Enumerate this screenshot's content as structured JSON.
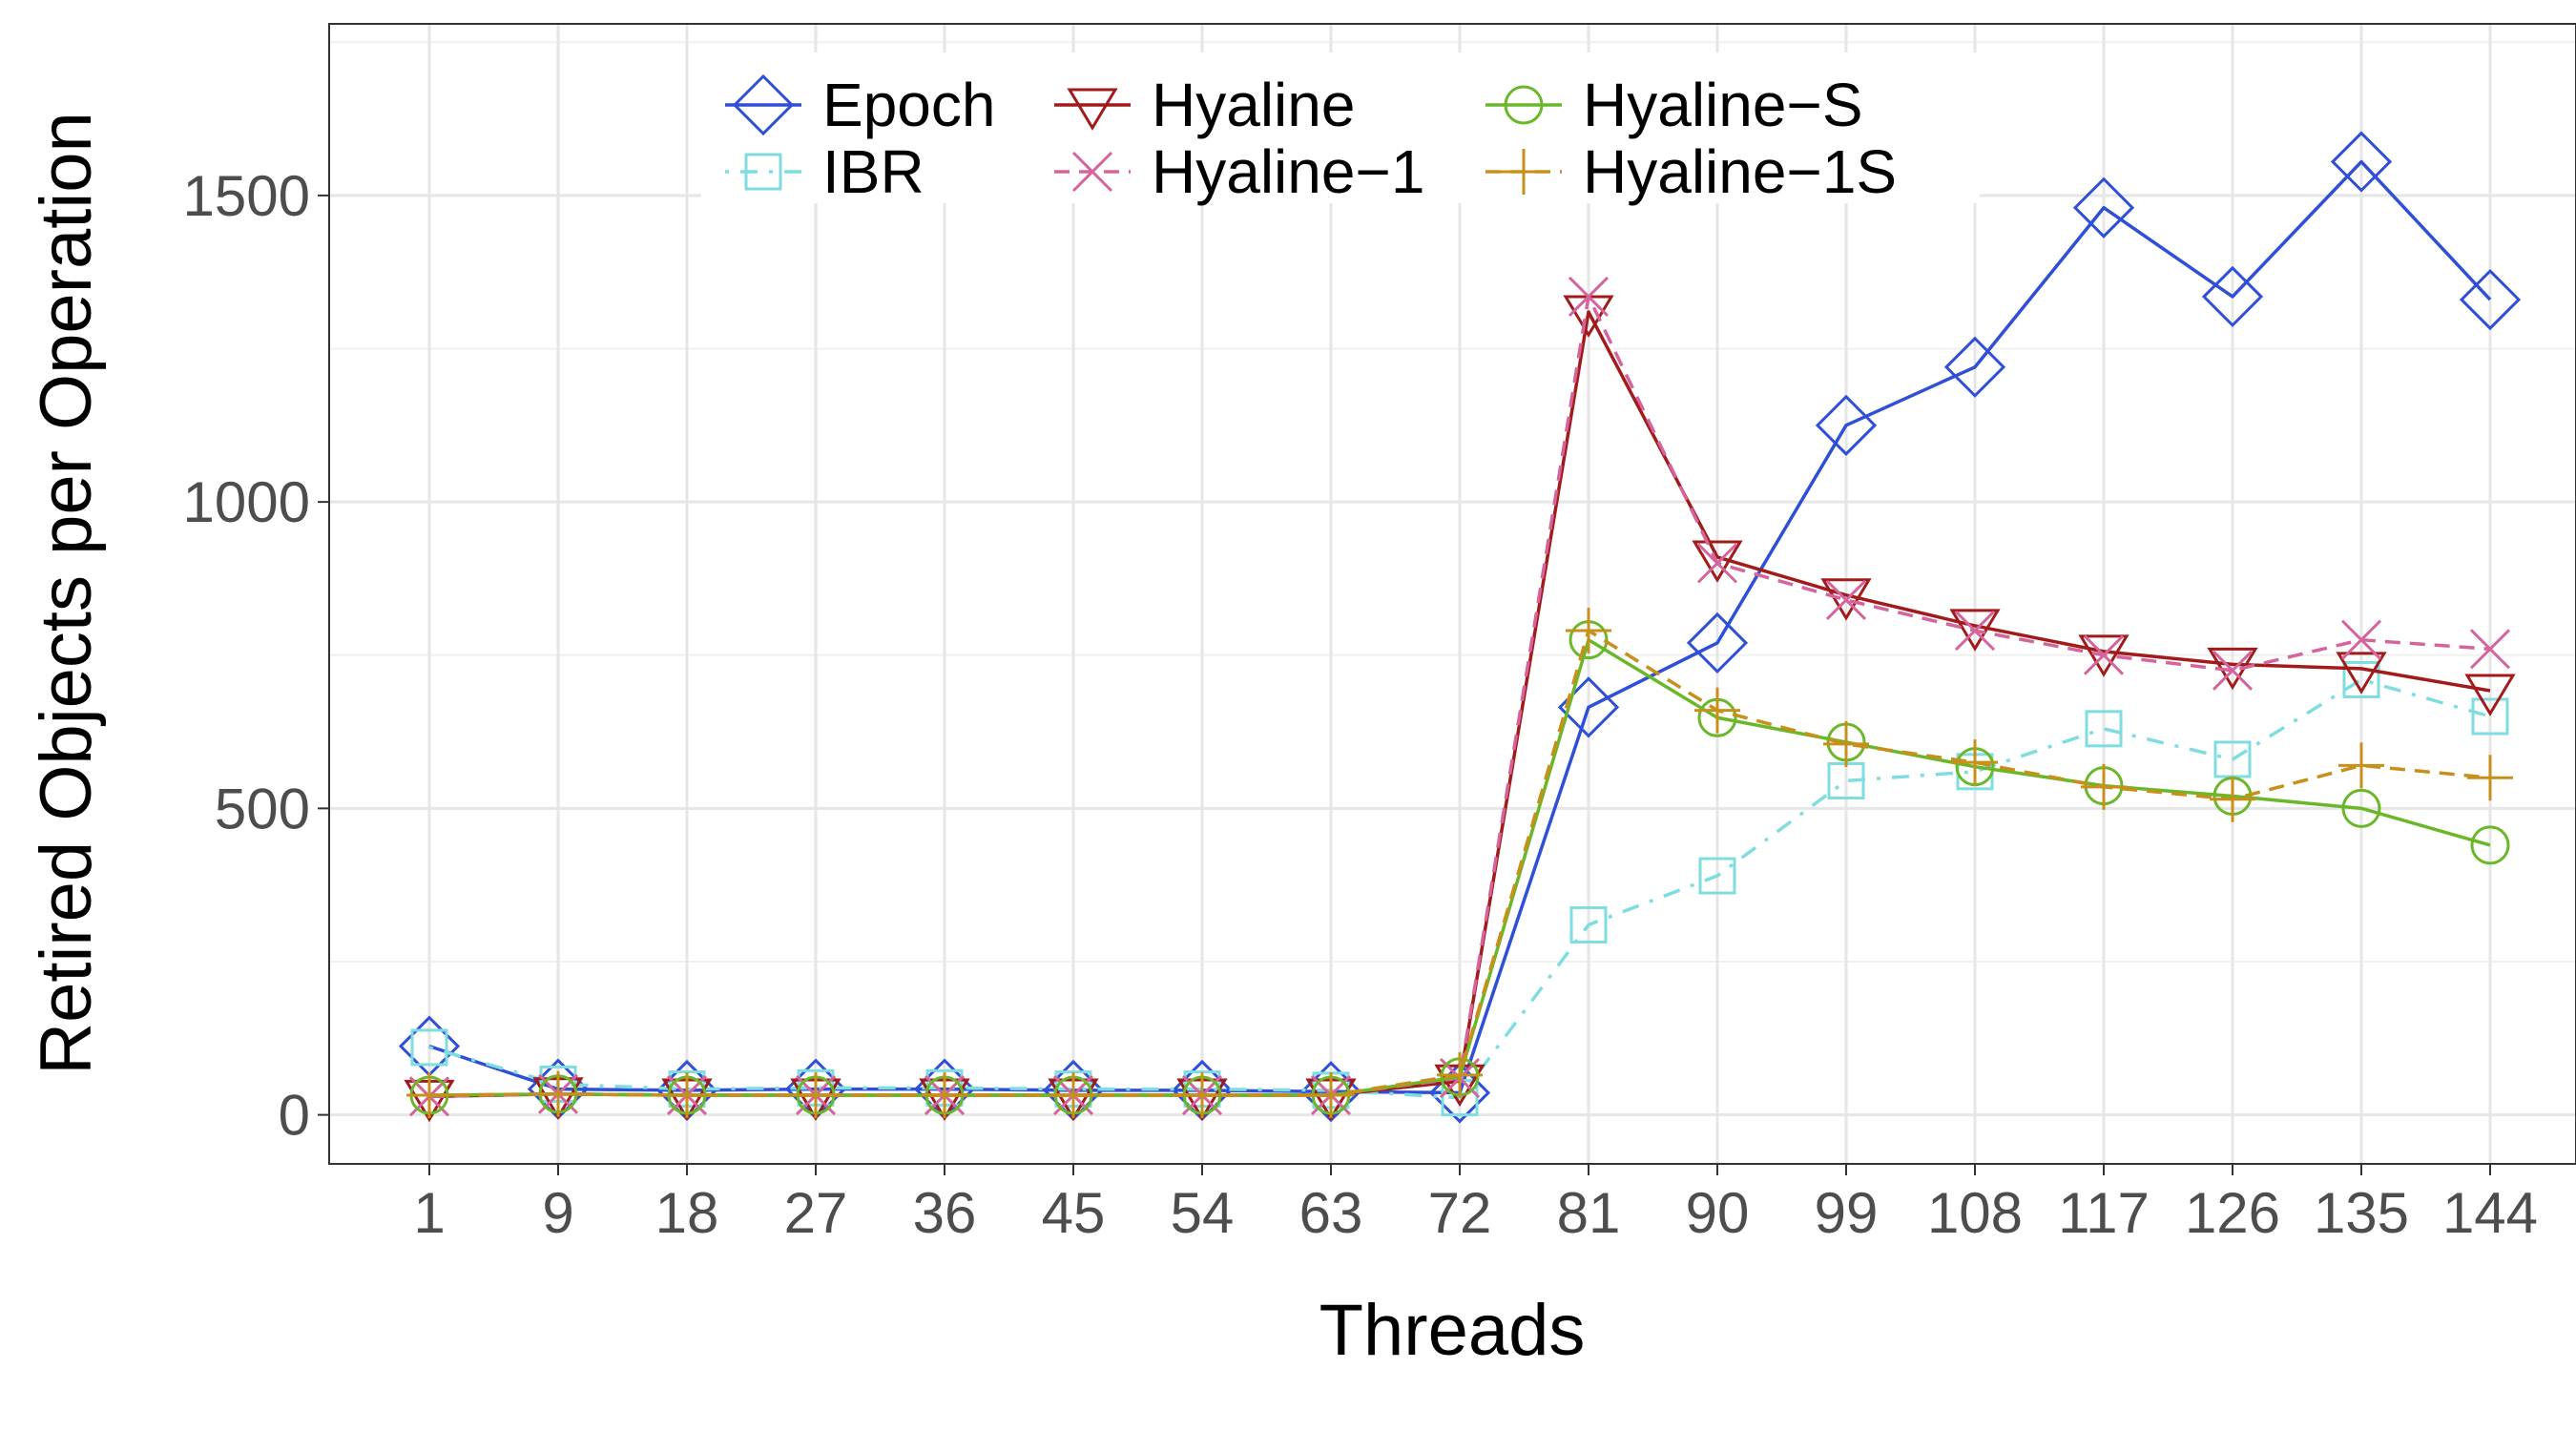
{
  "chart_data": {
    "type": "line",
    "xlabel": "Threads",
    "ylabel": "Retired Objects per Operation",
    "categories": [
      "1",
      "9",
      "18",
      "27",
      "36",
      "45",
      "54",
      "63",
      "72",
      "81",
      "90",
      "99",
      "108",
      "117",
      "126",
      "135",
      "144"
    ],
    "y_ticks": [
      0,
      500,
      1000,
      1500
    ],
    "ylim": [
      -80,
      1780
    ],
    "grid": true,
    "legend_position": "top-center",
    "series": [
      {
        "name": "Epoch",
        "color": "#2f4fd6",
        "marker": "diamond",
        "dash": "solid",
        "values": [
          112,
          42,
          40,
          42,
          42,
          40,
          40,
          38,
          36,
          665,
          770,
          1125,
          1220,
          1480,
          1335,
          1555,
          1330
        ]
      },
      {
        "name": "IBR",
        "color": "#7fdde0",
        "marker": "square",
        "dash": "dotdash",
        "values": [
          110,
          50,
          42,
          44,
          44,
          42,
          42,
          40,
          28,
          310,
          390,
          545,
          560,
          630,
          580,
          710,
          650
        ]
      },
      {
        "name": "Hyaline",
        "color": "#a11b1b",
        "marker": "triangle-down",
        "dash": "solid",
        "values": [
          30,
          34,
          32,
          32,
          32,
          32,
          32,
          32,
          55,
          1310,
          910,
          848,
          798,
          756,
          735,
          728,
          692
        ]
      },
      {
        "name": "Hyaline−1",
        "color": "#d6649c",
        "marker": "x",
        "dash": "dashed",
        "values": [
          30,
          34,
          32,
          32,
          32,
          32,
          32,
          32,
          60,
          1335,
          900,
          840,
          790,
          750,
          725,
          775,
          760
        ]
      },
      {
        "name": "Hyaline−S",
        "color": "#6ab82a",
        "marker": "circle",
        "dash": "solid",
        "values": [
          32,
          34,
          32,
          32,
          32,
          32,
          32,
          32,
          62,
          775,
          648,
          608,
          568,
          537,
          520,
          500,
          440
        ]
      },
      {
        "name": "Hyaline−1S",
        "color": "#c6901b",
        "marker": "plus",
        "dash": "dashed",
        "values": [
          32,
          34,
          32,
          32,
          32,
          32,
          32,
          32,
          65,
          790,
          660,
          605,
          575,
          535,
          515,
          570,
          550
        ]
      }
    ]
  }
}
